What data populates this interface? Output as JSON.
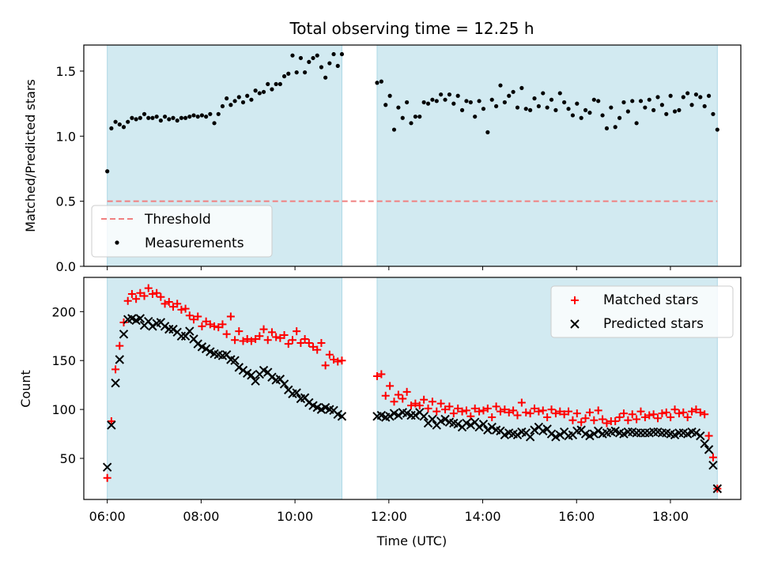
{
  "title": "Total observing time = 12.25 h",
  "colors": {
    "shade": "#add8e6",
    "threshold": "#f08080",
    "matched": "#ff0000",
    "predicted": "#000000",
    "measurements": "#000000"
  },
  "chart_data": [
    {
      "type": "scatter",
      "ylabel": "Matched/Predicted stars",
      "xlim": [
        "05:30",
        "19:30"
      ],
      "ylim": [
        0,
        1.7
      ],
      "yticks": [
        "0.0",
        "0.5",
        "1.0",
        "1.5"
      ],
      "shaded_intervals": [
        [
          "06:00",
          "11:00"
        ],
        [
          "11:45",
          "19:00"
        ]
      ],
      "legend": {
        "position": "lower-left",
        "entries": [
          "Threshold",
          "Measurements"
        ]
      },
      "threshold": {
        "name": "Threshold",
        "value": 0.5
      },
      "series": [
        {
          "name": "Measurements",
          "segments": [
            {
              "start": "06:00",
              "end": "11:00",
              "values": [
                0.73,
                1.06,
                1.11,
                1.09,
                1.07,
                1.11,
                1.14,
                1.13,
                1.14,
                1.17,
                1.14,
                1.14,
                1.15,
                1.12,
                1.15,
                1.13,
                1.14,
                1.12,
                1.14,
                1.14,
                1.15,
                1.16,
                1.15,
                1.16,
                1.15,
                1.17,
                1.1,
                1.17,
                1.23,
                1.29,
                1.24,
                1.27,
                1.3,
                1.26,
                1.31,
                1.28,
                1.35,
                1.33,
                1.34,
                1.4,
                1.36,
                1.4,
                1.4,
                1.46,
                1.48,
                1.62,
                1.49,
                1.6,
                1.49,
                1.57,
                1.6,
                1.62,
                1.53,
                1.45,
                1.56,
                1.63,
                1.54,
                1.63
              ]
            },
            {
              "start": "11:45",
              "end": "19:00",
              "values": [
                1.41,
                1.42,
                1.24,
                1.31,
                1.05,
                1.22,
                1.14,
                1.26,
                1.1,
                1.15,
                1.15,
                1.26,
                1.25,
                1.28,
                1.27,
                1.32,
                1.28,
                1.32,
                1.25,
                1.31,
                1.2,
                1.27,
                1.26,
                1.15,
                1.27,
                1.21,
                1.03,
                1.28,
                1.23,
                1.39,
                1.26,
                1.31,
                1.34,
                1.22,
                1.37,
                1.21,
                1.2,
                1.29,
                1.23,
                1.33,
                1.22,
                1.28,
                1.2,
                1.33,
                1.26,
                1.21,
                1.16,
                1.25,
                1.14,
                1.2,
                1.18,
                1.28,
                1.27,
                1.16,
                1.06,
                1.22,
                1.07,
                1.14,
                1.26,
                1.19,
                1.27,
                1.1,
                1.27,
                1.22,
                1.28,
                1.2,
                1.3,
                1.24,
                1.17,
                1.31,
                1.19,
                1.2,
                1.3,
                1.33,
                1.24,
                1.32,
                1.3,
                1.23,
                1.31,
                1.17,
                1.05
              ]
            }
          ]
        }
      ]
    },
    {
      "type": "scatter",
      "ylabel": "Count",
      "xlabel": "Time (UTC)",
      "xlim": [
        "05:30",
        "19:30"
      ],
      "ylim": [
        8,
        235
      ],
      "xticks": [
        "06:00",
        "08:00",
        "10:00",
        "12:00",
        "14:00",
        "16:00",
        "18:00"
      ],
      "yticks": [
        "50",
        "100",
        "150",
        "200"
      ],
      "shaded_intervals": [
        [
          "06:00",
          "11:00"
        ],
        [
          "11:45",
          "19:00"
        ]
      ],
      "legend": {
        "position": "top-right",
        "entries": [
          "Matched stars",
          "Predicted stars"
        ]
      },
      "series": [
        {
          "name": "Matched stars",
          "segments": [
            {
              "start": "06:00",
              "end": "11:00",
              "values": [
                30,
                88,
                141,
                165,
                189,
                211,
                218,
                213,
                219,
                216,
                224,
                218,
                219,
                215,
                208,
                210,
                205,
                208,
                202,
                203,
                196,
                192,
                195,
                185,
                190,
                187,
                185,
                184,
                187,
                177,
                195,
                171,
                180,
                170,
                172,
                170,
                172,
                175,
                182,
                171,
                179,
                174,
                173,
                176,
                167,
                171,
                180,
                168,
                172,
                168,
                164,
                161,
                168,
                145,
                156,
                151,
                149,
                150
              ]
            },
            {
              "start": "11:45",
              "end": "19:00",
              "values": [
                134,
                136,
                114,
                124,
                108,
                115,
                111,
                118,
                104,
                106,
                104,
                110,
                101,
                108,
                98,
                106,
                100,
                103,
                96,
                101,
                98,
                99,
                93,
                101,
                98,
                99,
                101,
                92,
                103,
                98,
                100,
                97,
                99,
                94,
                107,
                97,
                96,
                101,
                98,
                99,
                92,
                100,
                96,
                98,
                95,
                98,
                89,
                96,
                87,
                91,
                97,
                89,
                99,
                90,
                86,
                88,
                88,
                92,
                96,
                89,
                95,
                90,
                98,
                92,
                94,
                95,
                91,
                96,
                97,
                92,
                100,
                96,
                97,
                92,
                98,
                100,
                97,
                95,
                73,
                51,
                19
              ]
            }
          ]
        },
        {
          "name": "Predicted stars",
          "segments": [
            {
              "start": "06:00",
              "end": "11:00",
              "values": [
                41,
                84,
                127,
                151,
                177,
                192,
                193,
                191,
                193,
                186,
                190,
                185,
                188,
                189,
                185,
                182,
                182,
                179,
                175,
                175,
                180,
                172,
                167,
                164,
                162,
                159,
                157,
                156,
                155,
                156,
                151,
                150,
                143,
                140,
                137,
                135,
                129,
                136,
                140,
                138,
                133,
                130,
                131,
                126,
                120,
                116,
                117,
                111,
                112,
                107,
                104,
                102,
                100,
                102,
                100,
                99,
                95,
                93
              ]
            },
            {
              "start": "11:45",
              "end": "19:00",
              "values": [
                93,
                94,
                92,
                93,
                96,
                94,
                97,
                96,
                94,
                94,
                97,
                93,
                86,
                90,
                84,
                88,
                90,
                87,
                86,
                85,
                82,
                86,
                84,
                87,
                82,
                85,
                79,
                82,
                79,
                78,
                74,
                76,
                75,
                74,
                77,
                76,
                72,
                79,
                82,
                78,
                80,
                75,
                72,
                74,
                77,
                73,
                74,
                78,
                79,
                75,
                73,
                75,
                78,
                75,
                76,
                77,
                78,
                76,
                75,
                77,
                77,
                76,
                76,
                76,
                76,
                77,
                77,
                76,
                76,
                75,
                74,
                76,
                76,
                75,
                77,
                76,
                73,
                65,
                59,
                43,
                19
              ]
            }
          ]
        }
      ]
    }
  ]
}
